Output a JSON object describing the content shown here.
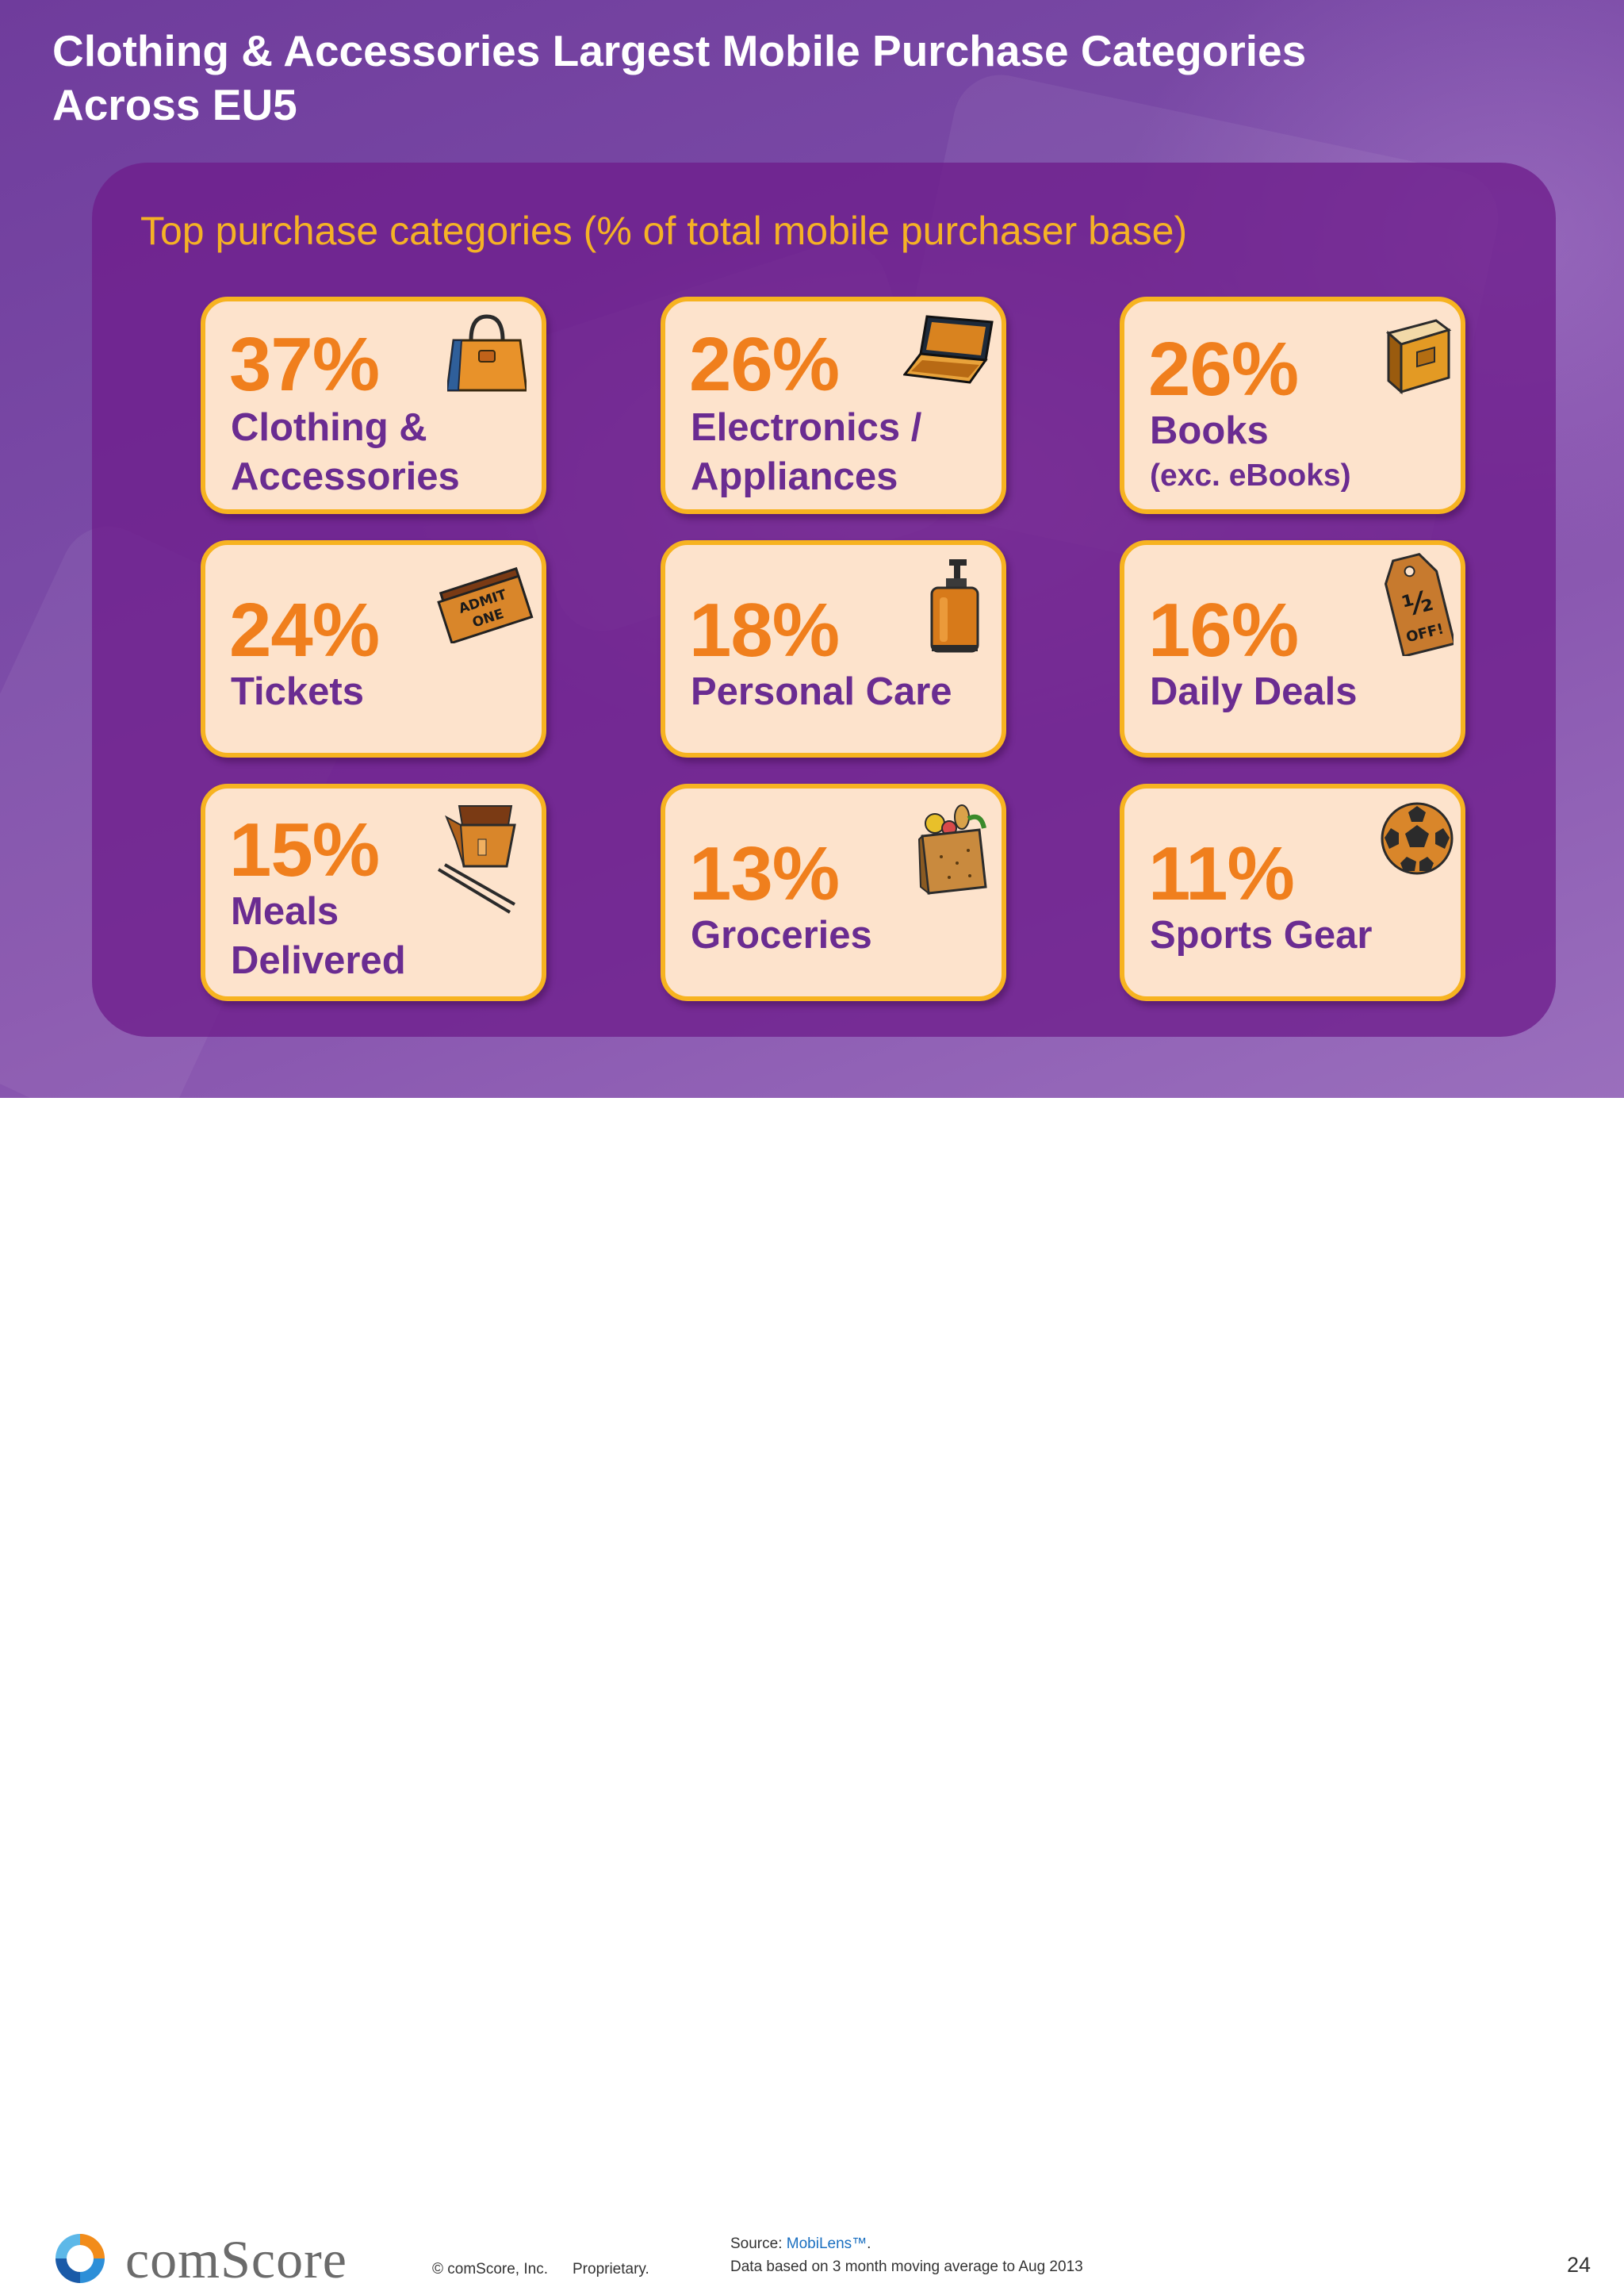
{
  "title": {
    "line1": "Clothing & Accessories Largest Mobile Purchase Categories",
    "line2": "Across EU5"
  },
  "subtitle": "Top purchase categories (% of total mobile purchaser base)",
  "colors": {
    "accent_orange": "#f07f1d",
    "label_purple": "#6a2c91",
    "card_fill": "#fde3cc",
    "card_border": "#f7b320",
    "subtitle_gold": "#f5b225"
  },
  "categories": [
    {
      "percent": "37%",
      "value": 37,
      "label_lines": [
        "Clothing &",
        "Accessories"
      ],
      "icon": "handbag-icon"
    },
    {
      "percent": "26%",
      "value": 26,
      "label_lines": [
        "Electronics /",
        "Appliances"
      ],
      "icon": "laptop-icon"
    },
    {
      "percent": "26%",
      "value": 26,
      "label_lines": [
        "Books",
        "(exc. eBooks)"
      ],
      "icon": "book-icon"
    },
    {
      "percent": "24%",
      "value": 24,
      "label_lines": [
        "Tickets"
      ],
      "icon": "ticket-icon",
      "icon_text": [
        "ADMIT",
        "ONE"
      ]
    },
    {
      "percent": "18%",
      "value": 18,
      "label_lines": [
        "Personal Care"
      ],
      "icon": "soap-dispenser-icon"
    },
    {
      "percent": "16%",
      "value": 16,
      "label_lines": [
        "Daily Deals"
      ],
      "icon": "price-tag-icon",
      "icon_text": [
        "½",
        "OFF!"
      ]
    },
    {
      "percent": "15%",
      "value": 15,
      "label_lines": [
        "Meals",
        "Delivered"
      ],
      "icon": "takeout-box-icon"
    },
    {
      "percent": "13%",
      "value": 13,
      "label_lines": [
        "Groceries"
      ],
      "icon": "grocery-bag-icon"
    },
    {
      "percent": "11%",
      "value": 11,
      "label_lines": [
        "Sports Gear"
      ],
      "icon": "soccer-ball-icon"
    }
  ],
  "footer": {
    "logo_text": "comScore",
    "copyright": "© comScore, Inc.",
    "proprietary": "Proprietary.",
    "source_prefix": "Source: ",
    "source_link": "MobiLens™",
    "source_suffix": ".",
    "data_note": "Data based on 3 month moving average to Aug 2013",
    "page_number": "24"
  }
}
